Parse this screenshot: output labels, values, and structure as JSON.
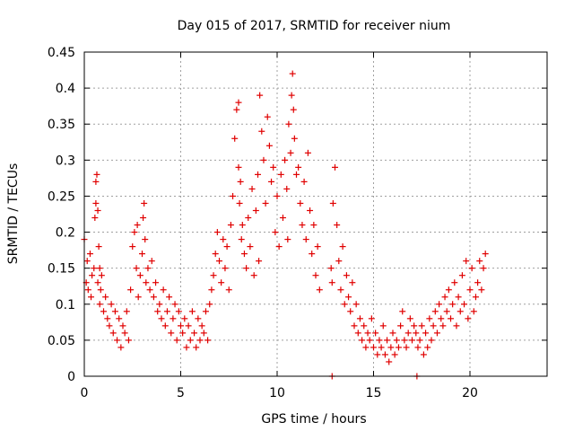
{
  "chart_data": {
    "type": "scatter",
    "title": "Day 015 of 2017, SRMTID for receiver nium",
    "xlabel": "GPS time / hours",
    "ylabel": "SRMTID / TECUs",
    "xlim": [
      0,
      24
    ],
    "ylim": [
      0,
      0.45
    ],
    "xticks": [
      0,
      5,
      10,
      15,
      20
    ],
    "xtick_labels": [
      "0",
      "5",
      "10",
      "15",
      "20"
    ],
    "yticks": [
      0,
      0.05,
      0.1,
      0.15,
      0.2,
      0.25,
      0.3,
      0.35,
      0.4,
      0.45
    ],
    "ytick_labels": [
      "0",
      "0.05",
      "0.1",
      "0.15",
      "0.2",
      "0.25",
      "0.3",
      "0.35",
      "0.4",
      "0.45"
    ],
    "grid": true,
    "marker": "+",
    "color": "#e00000",
    "series": [
      {
        "name": "SRMTID",
        "x": [
          0.0,
          0.1,
          0.15,
          0.2,
          0.3,
          0.35,
          0.4,
          0.5,
          0.55,
          0.6,
          0.6,
          0.65,
          0.7,
          0.7,
          0.75,
          0.8,
          0.8,
          0.85,
          0.9,
          1.0,
          1.1,
          1.2,
          1.3,
          1.4,
          1.5,
          1.6,
          1.7,
          1.8,
          1.9,
          2.0,
          2.1,
          2.2,
          2.3,
          2.4,
          2.5,
          2.6,
          2.7,
          2.75,
          2.8,
          2.9,
          3.0,
          3.05,
          3.1,
          3.15,
          3.2,
          3.3,
          3.4,
          3.5,
          3.6,
          3.7,
          3.8,
          3.9,
          4.0,
          4.1,
          4.2,
          4.3,
          4.4,
          4.5,
          4.6,
          4.7,
          4.8,
          4.9,
          5.0,
          5.1,
          5.2,
          5.3,
          5.4,
          5.5,
          5.6,
          5.7,
          5.8,
          5.9,
          6.0,
          6.1,
          6.2,
          6.3,
          6.4,
          6.5,
          6.6,
          6.7,
          6.8,
          6.9,
          7.0,
          7.1,
          7.2,
          7.3,
          7.4,
          7.5,
          7.6,
          7.7,
          7.8,
          7.9,
          8.0,
          8.0,
          8.05,
          8.1,
          8.15,
          8.2,
          8.3,
          8.4,
          8.5,
          8.6,
          8.7,
          8.8,
          8.9,
          9.0,
          9.05,
          9.1,
          9.2,
          9.3,
          9.4,
          9.5,
          9.6,
          9.7,
          9.8,
          9.9,
          10.0,
          10.1,
          10.2,
          10.3,
          10.4,
          10.5,
          10.55,
          10.6,
          10.7,
          10.75,
          10.8,
          10.85,
          10.9,
          11.0,
          11.1,
          11.2,
          11.3,
          11.4,
          11.5,
          11.6,
          11.7,
          11.8,
          11.9,
          12.0,
          12.1,
          12.2,
          12.8,
          12.85,
          12.9,
          13.0,
          13.1,
          13.2,
          13.3,
          13.4,
          13.5,
          13.6,
          13.7,
          13.8,
          13.9,
          14.0,
          14.1,
          14.2,
          14.3,
          14.4,
          14.5,
          14.6,
          14.7,
          14.8,
          14.9,
          15.0,
          15.1,
          15.2,
          15.3,
          15.4,
          15.5,
          15.6,
          15.7,
          15.8,
          15.9,
          16.0,
          16.1,
          16.2,
          16.3,
          16.4,
          16.5,
          16.6,
          16.7,
          16.8,
          16.9,
          17.0,
          17.1,
          17.2,
          17.3,
          17.4,
          17.5,
          17.6,
          17.7,
          17.8,
          17.9,
          18.0,
          18.1,
          18.2,
          18.3,
          18.4,
          18.5,
          18.6,
          18.7,
          18.8,
          18.9,
          19.0,
          19.1,
          19.2,
          19.3,
          19.4,
          19.5,
          19.6,
          19.7,
          19.8,
          19.9,
          20.0,
          20.1,
          20.2,
          20.3,
          20.4,
          20.5,
          20.6,
          20.7,
          20.8,
          12.85,
          17.25
        ],
        "y": [
          0.19,
          0.13,
          0.16,
          0.12,
          0.17,
          0.11,
          0.14,
          0.15,
          0.22,
          0.24,
          0.27,
          0.28,
          0.23,
          0.13,
          0.18,
          0.15,
          0.1,
          0.12,
          0.14,
          0.09,
          0.11,
          0.08,
          0.07,
          0.1,
          0.06,
          0.09,
          0.05,
          0.08,
          0.04,
          0.07,
          0.06,
          0.09,
          0.05,
          0.12,
          0.18,
          0.2,
          0.15,
          0.21,
          0.11,
          0.14,
          0.17,
          0.22,
          0.24,
          0.19,
          0.13,
          0.15,
          0.12,
          0.16,
          0.11,
          0.13,
          0.09,
          0.1,
          0.08,
          0.12,
          0.07,
          0.09,
          0.11,
          0.06,
          0.08,
          0.1,
          0.05,
          0.09,
          0.07,
          0.06,
          0.08,
          0.04,
          0.07,
          0.05,
          0.09,
          0.06,
          0.04,
          0.08,
          0.05,
          0.07,
          0.06,
          0.09,
          0.05,
          0.1,
          0.12,
          0.14,
          0.17,
          0.2,
          0.16,
          0.13,
          0.19,
          0.15,
          0.18,
          0.12,
          0.21,
          0.25,
          0.33,
          0.37,
          0.38,
          0.29,
          0.24,
          0.27,
          0.19,
          0.21,
          0.17,
          0.15,
          0.22,
          0.18,
          0.26,
          0.14,
          0.23,
          0.28,
          0.16,
          0.39,
          0.34,
          0.3,
          0.24,
          0.36,
          0.32,
          0.27,
          0.29,
          0.2,
          0.25,
          0.18,
          0.28,
          0.22,
          0.3,
          0.26,
          0.19,
          0.35,
          0.31,
          0.39,
          0.42,
          0.37,
          0.33,
          0.28,
          0.29,
          0.24,
          0.21,
          0.27,
          0.19,
          0.31,
          0.23,
          0.17,
          0.21,
          0.14,
          0.18,
          0.12,
          0.15,
          0.13,
          0.24,
          0.29,
          0.21,
          0.16,
          0.12,
          0.18,
          0.1,
          0.14,
          0.11,
          0.09,
          0.13,
          0.07,
          0.1,
          0.06,
          0.08,
          0.05,
          0.07,
          0.04,
          0.06,
          0.05,
          0.08,
          0.04,
          0.06,
          0.03,
          0.05,
          0.04,
          0.07,
          0.03,
          0.05,
          0.02,
          0.04,
          0.06,
          0.03,
          0.05,
          0.04,
          0.07,
          0.09,
          0.05,
          0.04,
          0.06,
          0.08,
          0.05,
          0.07,
          0.06,
          0.04,
          0.05,
          0.07,
          0.03,
          0.06,
          0.04,
          0.08,
          0.05,
          0.07,
          0.09,
          0.06,
          0.1,
          0.08,
          0.07,
          0.11,
          0.09,
          0.12,
          0.08,
          0.1,
          0.13,
          0.07,
          0.11,
          0.09,
          0.14,
          0.1,
          0.16,
          0.08,
          0.12,
          0.15,
          0.09,
          0.11,
          0.13,
          0.16,
          0.12,
          0.15,
          0.17,
          0.0,
          0.0
        ]
      }
    ]
  }
}
